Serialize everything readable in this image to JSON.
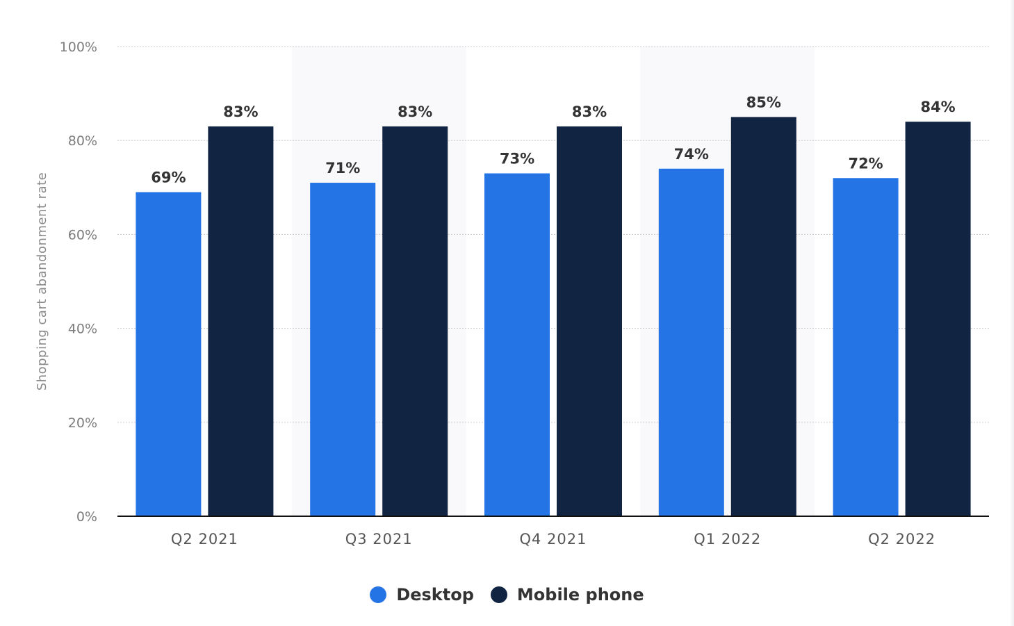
{
  "chart_data": {
    "type": "bar",
    "categories": [
      "Q2 2021",
      "Q3 2021",
      "Q4 2021",
      "Q1 2022",
      "Q2 2022"
    ],
    "series": [
      {
        "name": "Desktop",
        "values": [
          69,
          71,
          73,
          74,
          72
        ],
        "color": "#2474e6"
      },
      {
        "name": "Mobile phone",
        "values": [
          83,
          83,
          83,
          85,
          84
        ],
        "color": "#112542"
      }
    ],
    "data_labels": [
      [
        "69%",
        "71%",
        "73%",
        "74%",
        "72%"
      ],
      [
        "83%",
        "83%",
        "83%",
        "85%",
        "84%"
      ]
    ],
    "ylabel": "Shopping cart abandonment rate",
    "ylim": [
      0,
      100
    ],
    "yticks": [
      0,
      20,
      40,
      60,
      80,
      100
    ],
    "ytick_labels": [
      "0%",
      "20%",
      "40%",
      "60%",
      "80%",
      "100%"
    ],
    "grid": true,
    "legend_position": "bottom-center",
    "alternate_band_color": "#f9f8fb"
  }
}
